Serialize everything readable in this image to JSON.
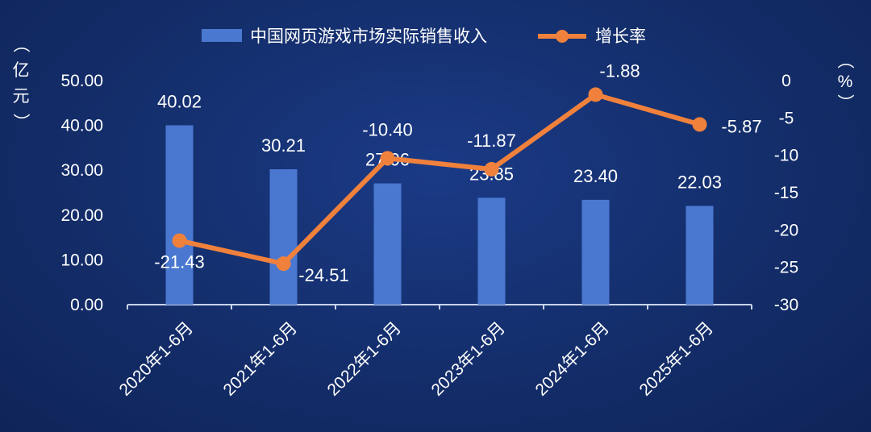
{
  "chart_data": {
    "type": "bar",
    "categories": [
      "2020年1-6月",
      "2021年1-6月",
      "2022年1-6月",
      "2023年1-6月",
      "2024年1-6月",
      "2025年1-6月"
    ],
    "series": [
      {
        "name": "中国网页游戏市场实际销售收入",
        "type": "bar",
        "axis": "left",
        "color": "#4a78d0",
        "values": [
          40.02,
          30.21,
          27.06,
          23.85,
          23.4,
          22.03
        ]
      },
      {
        "name": "增长率",
        "type": "line",
        "axis": "right",
        "color": "#f0813c",
        "values": [
          -21.43,
          -24.51,
          -10.4,
          -11.87,
          -1.88,
          -5.87
        ]
      }
    ],
    "left_axis": {
      "label": "（亿元）",
      "min": 0,
      "max": 50,
      "step": 10,
      "tick_labels": [
        "0.00",
        "10.00",
        "20.00",
        "30.00",
        "40.00",
        "50.00"
      ]
    },
    "right_axis": {
      "label": "（%）",
      "min": -30,
      "max": 0,
      "step": 5,
      "tick_labels": [
        "-30",
        "-25",
        "-20",
        "-15",
        "-10",
        "-5",
        "0"
      ]
    },
    "bar_labels": [
      "40.02",
      "30.21",
      "27.06",
      "23.85",
      "23.40",
      "22.03"
    ],
    "line_labels": [
      "-21.43",
      "-24.51",
      "-10.40",
      "-11.87",
      "-1.88",
      "-5.87"
    ],
    "legend": {
      "position": "top-center"
    },
    "grid": false
  }
}
